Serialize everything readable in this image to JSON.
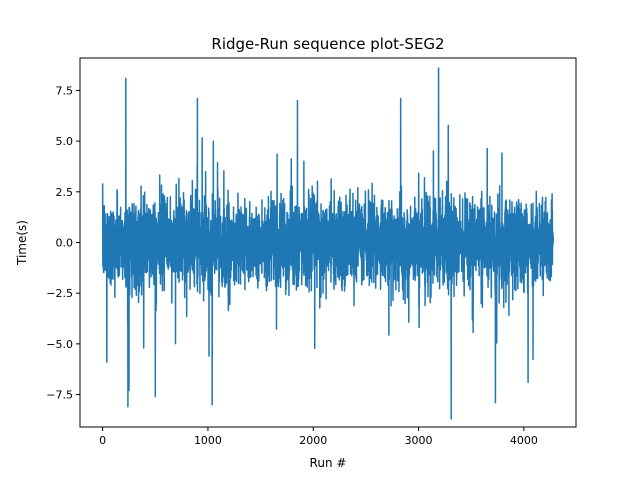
{
  "chart_data": {
    "type": "line",
    "title": "Ridge-Run sequence plot-SEG2",
    "xlabel": "Run #",
    "ylabel": "Time(s)",
    "xlim": [
      -215,
      4495
    ],
    "ylim": [
      -9.1,
      9.1
    ],
    "xticks": [
      0,
      1000,
      2000,
      3000,
      4000
    ],
    "xtick_labels": [
      "0",
      "1000",
      "2000",
      "3000",
      "4000"
    ],
    "yticks": [
      -7.5,
      -5.0,
      -2.5,
      0.0,
      2.5,
      5.0,
      7.5
    ],
    "ytick_labels": [
      "−7.5",
      "−5.0",
      "−2.5",
      "0.0",
      "2.5",
      "5.0",
      "7.5"
    ],
    "grid": false,
    "series": [
      {
        "color": "#1f77b4",
        "n_points": 4280,
        "x_range": [
          0,
          4279
        ],
        "values_approx_range": [
          -8.7,
          8.6
        ],
        "notable_extremes": [
          {
            "x": 40,
            "y": -5.9
          },
          {
            "x": 220,
            "y": 8.1
          },
          {
            "x": 240,
            "y": -8.1
          },
          {
            "x": 250,
            "y": -7.3
          },
          {
            "x": 390,
            "y": -5.2
          },
          {
            "x": 500,
            "y": -7.6
          },
          {
            "x": 900,
            "y": 7.1
          },
          {
            "x": 1010,
            "y": -5.6
          },
          {
            "x": 1040,
            "y": -8.0
          },
          {
            "x": 1850,
            "y": 7.0
          },
          {
            "x": 2830,
            "y": 7.1
          },
          {
            "x": 3190,
            "y": 8.6
          },
          {
            "x": 3310,
            "y": -8.7
          },
          {
            "x": 3730,
            "y": -7.9
          },
          {
            "x": 4040,
            "y": -6.9
          }
        ]
      }
    ]
  }
}
